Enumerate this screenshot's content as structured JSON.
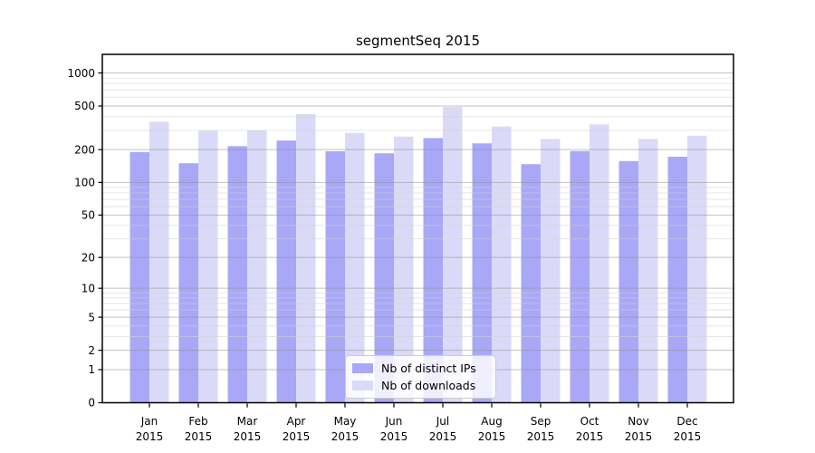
{
  "chart_data": {
    "type": "bar",
    "title": "segmentSeq 2015",
    "year": "2015",
    "categories": [
      "Jan",
      "Feb",
      "Mar",
      "Apr",
      "May",
      "Jun",
      "Jul",
      "Aug",
      "Sep",
      "Oct",
      "Nov",
      "Dec"
    ],
    "series": [
      {
        "name": "Nb of distinct IPs",
        "color": "#a8a8f7",
        "values": [
          190,
          150,
          215,
          242,
          193,
          185,
          255,
          228,
          147,
          194,
          157,
          172
        ]
      },
      {
        "name": "Nb of downloads",
        "color": "#dadaf8",
        "values": [
          360,
          297,
          300,
          422,
          284,
          263,
          490,
          325,
          250,
          340,
          250,
          268
        ]
      }
    ],
    "xlabel": "",
    "ylabel": "",
    "y_scale": "log10(1+x)",
    "yticks": [
      0,
      1,
      2,
      5,
      10,
      20,
      50,
      100,
      200,
      500,
      1000
    ],
    "y_minor_gridlines": [
      3,
      4,
      6,
      7,
      8,
      9,
      30,
      40,
      60,
      70,
      80,
      90,
      300,
      400,
      600,
      700,
      800,
      900
    ],
    "ylim": [
      0,
      1480
    ],
    "grid": "horizontal major+minor, drawn over bars",
    "legend_position": "lower center inside plot",
    "colors": {
      "axis": "#000000",
      "major_grid": "#8f8f8f",
      "minor_grid": "#d2d2d2",
      "background": "#ffffff"
    }
  }
}
